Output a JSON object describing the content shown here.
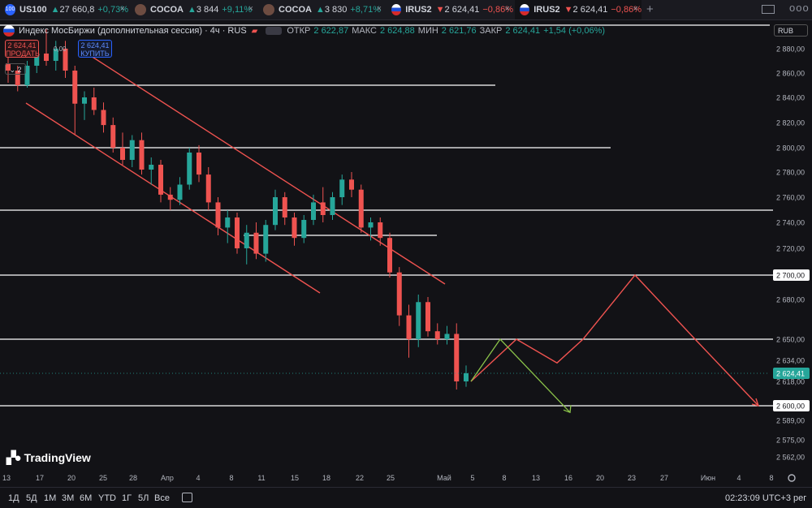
{
  "tabs": [
    {
      "badge": "100",
      "name": "US100",
      "arrow": "▲",
      "price": "27 660,8",
      "change": "+0,73%",
      "dir": "up",
      "close": "×"
    },
    {
      "badge": "",
      "name": "COCOA",
      "arrow": "▲",
      "price": "3 844",
      "change": "+9,11%",
      "dir": "up",
      "close": "×"
    },
    {
      "badge": "",
      "name": "COCOA",
      "arrow": "▲",
      "price": "3 830",
      "change": "+8,71%",
      "dir": "up",
      "close": "×"
    },
    {
      "badge": "",
      "name": "IRUS2",
      "arrow": "▼",
      "price": "2 624,41",
      "change": "−0,86%",
      "dir": "down",
      "close": "×"
    },
    {
      "badge": "",
      "name": "IRUS2",
      "arrow": "▼",
      "price": "2 624,41",
      "change": "−0,86%",
      "dir": "down",
      "close": "×"
    }
  ],
  "tabbar": {
    "plus": "+",
    "more": "ooo"
  },
  "legend": {
    "symbol": "Индекс МосБиржи (дополнительная сессия) · 4ч · RUS",
    "open_label": "ОТКР",
    "open": "2 622,87",
    "high_label": "МАКС",
    "high": "2 624,88",
    "low_label": "МИН",
    "low": "2 621,76",
    "close_label": "ЗАКР",
    "close": "2 624,41",
    "change": "+1,54 (+0,06%)"
  },
  "currency": "RUB",
  "trade": {
    "sell_price": "2 624,41",
    "sell_label": "ПРОДАТЬ",
    "spread": "0,00",
    "buy_price": "2 624,41",
    "buy_label": "КУПИТЬ"
  },
  "indicator_count": "2",
  "logo": "TradingView",
  "bottom": {
    "periods": [
      "1Д",
      "5Д",
      "1М",
      "3М",
      "6М",
      "YTD",
      "1Г",
      "5Л",
      "Все"
    ],
    "time": "02:23:09 UTC+3",
    "extra": "рег"
  },
  "colors": {
    "up": "#26a69a",
    "down": "#ef5350",
    "forecast_up": "#ef5350",
    "forecast_down": "#8bc34a",
    "channel": "#ef5350",
    "level": "#ffffff"
  },
  "chart_data": {
    "type": "candlestick",
    "title": "Индекс МосБиржи (дополнительная сессия)",
    "timeframe": "4ч",
    "yticks": [
      2880,
      2860,
      2840,
      2820,
      2800,
      2780,
      2760,
      2740,
      2720,
      2700,
      2680,
      2650,
      2634,
      2618,
      2600,
      2589,
      2575,
      2562
    ],
    "ytick_labels": [
      "2 880,00",
      "2 860,00",
      "2 840,00",
      "2 820,00",
      "2 800,00",
      "2 780,00",
      "2 760,00",
      "2 740,00",
      "2 720,00",
      "2 700,00",
      "2 680,00",
      "2 650,00",
      "2 634,00",
      "2 618,00",
      "2 600,00",
      "2 589,00",
      "2 575,00",
      "2 562,00"
    ],
    "xtick_labels": [
      "13",
      "17",
      "20",
      "25",
      "28",
      "Апр",
      "4",
      "8",
      "11",
      "15",
      "18",
      "22",
      "25",
      "Май",
      "5",
      "8",
      "13",
      "16",
      "20",
      "23",
      "27",
      "Июн",
      "4",
      "8"
    ],
    "last_price": "2 624,41",
    "highlighted_levels": [
      "2 700,00",
      "2 600,00"
    ],
    "horizontal_levels": [
      2892,
      2850,
      2800,
      2750,
      2730,
      2700,
      2650,
      2600
    ],
    "candles": [
      {
        "o": 2868,
        "h": 2880,
        "l": 2852,
        "c": 2862
      },
      {
        "o": 2862,
        "h": 2866,
        "l": 2845,
        "c": 2850
      },
      {
        "o": 2850,
        "h": 2870,
        "l": 2848,
        "c": 2866
      },
      {
        "o": 2866,
        "h": 2882,
        "l": 2860,
        "c": 2876
      },
      {
        "o": 2876,
        "h": 2890,
        "l": 2866,
        "c": 2870
      },
      {
        "o": 2870,
        "h": 2884,
        "l": 2862,
        "c": 2880
      },
      {
        "o": 2880,
        "h": 2884,
        "l": 2856,
        "c": 2862
      },
      {
        "o": 2862,
        "h": 2866,
        "l": 2810,
        "c": 2835
      },
      {
        "o": 2835,
        "h": 2845,
        "l": 2822,
        "c": 2840
      },
      {
        "o": 2840,
        "h": 2848,
        "l": 2826,
        "c": 2830
      },
      {
        "o": 2830,
        "h": 2836,
        "l": 2812,
        "c": 2818
      },
      {
        "o": 2818,
        "h": 2824,
        "l": 2796,
        "c": 2800
      },
      {
        "o": 2800,
        "h": 2812,
        "l": 2786,
        "c": 2790
      },
      {
        "o": 2790,
        "h": 2810,
        "l": 2784,
        "c": 2806
      },
      {
        "o": 2806,
        "h": 2812,
        "l": 2778,
        "c": 2782
      },
      {
        "o": 2782,
        "h": 2792,
        "l": 2770,
        "c": 2786
      },
      {
        "o": 2786,
        "h": 2790,
        "l": 2756,
        "c": 2762
      },
      {
        "o": 2762,
        "h": 2768,
        "l": 2750,
        "c": 2758
      },
      {
        "o": 2758,
        "h": 2776,
        "l": 2754,
        "c": 2770
      },
      {
        "o": 2770,
        "h": 2800,
        "l": 2766,
        "c": 2796
      },
      {
        "o": 2796,
        "h": 2802,
        "l": 2772,
        "c": 2778
      },
      {
        "o": 2778,
        "h": 2784,
        "l": 2750,
        "c": 2756
      },
      {
        "o": 2756,
        "h": 2760,
        "l": 2730,
        "c": 2736
      },
      {
        "o": 2736,
        "h": 2750,
        "l": 2724,
        "c": 2744
      },
      {
        "o": 2744,
        "h": 2748,
        "l": 2716,
        "c": 2720
      },
      {
        "o": 2720,
        "h": 2738,
        "l": 2708,
        "c": 2732
      },
      {
        "o": 2732,
        "h": 2740,
        "l": 2712,
        "c": 2716
      },
      {
        "o": 2716,
        "h": 2742,
        "l": 2710,
        "c": 2738
      },
      {
        "o": 2738,
        "h": 2766,
        "l": 2734,
        "c": 2760
      },
      {
        "o": 2760,
        "h": 2764,
        "l": 2738,
        "c": 2744
      },
      {
        "o": 2744,
        "h": 2748,
        "l": 2722,
        "c": 2728
      },
      {
        "o": 2728,
        "h": 2746,
        "l": 2724,
        "c": 2742
      },
      {
        "o": 2742,
        "h": 2762,
        "l": 2738,
        "c": 2756
      },
      {
        "o": 2756,
        "h": 2768,
        "l": 2740,
        "c": 2746
      },
      {
        "o": 2746,
        "h": 2764,
        "l": 2742,
        "c": 2760
      },
      {
        "o": 2760,
        "h": 2778,
        "l": 2754,
        "c": 2774
      },
      {
        "o": 2774,
        "h": 2780,
        "l": 2760,
        "c": 2766
      },
      {
        "o": 2766,
        "h": 2770,
        "l": 2732,
        "c": 2736
      },
      {
        "o": 2736,
        "h": 2744,
        "l": 2726,
        "c": 2740
      },
      {
        "o": 2740,
        "h": 2744,
        "l": 2722,
        "c": 2728
      },
      {
        "o": 2728,
        "h": 2732,
        "l": 2698,
        "c": 2702
      },
      {
        "o": 2702,
        "h": 2706,
        "l": 2660,
        "c": 2668
      },
      {
        "o": 2668,
        "h": 2676,
        "l": 2636,
        "c": 2650
      },
      {
        "o": 2650,
        "h": 2684,
        "l": 2644,
        "c": 2678
      },
      {
        "o": 2678,
        "h": 2682,
        "l": 2652,
        "c": 2656
      },
      {
        "o": 2656,
        "h": 2662,
        "l": 2646,
        "c": 2650
      },
      {
        "o": 2650,
        "h": 2660,
        "l": 2646,
        "c": 2654
      },
      {
        "o": 2654,
        "h": 2662,
        "l": 2612,
        "c": 2618
      },
      {
        "o": 2618,
        "h": 2630,
        "l": 2614,
        "c": 2624
      }
    ],
    "forecast_up": [
      {
        "x": "5",
        "y": 2618
      },
      {
        "x": "8",
        "y": 2650
      },
      {
        "x": "13",
        "y": 2632
      },
      {
        "x": "16",
        "y": 2650
      },
      {
        "x": "23",
        "y": 2700
      },
      {
        "x": "Июн",
        "y": 2650
      },
      {
        "x": "8",
        "y": 2600
      }
    ],
    "forecast_down": [
      {
        "x": "5",
        "y": 2618
      },
      {
        "x": "8",
        "y": 2650
      },
      {
        "x": "16",
        "y": 2595
      }
    ]
  }
}
